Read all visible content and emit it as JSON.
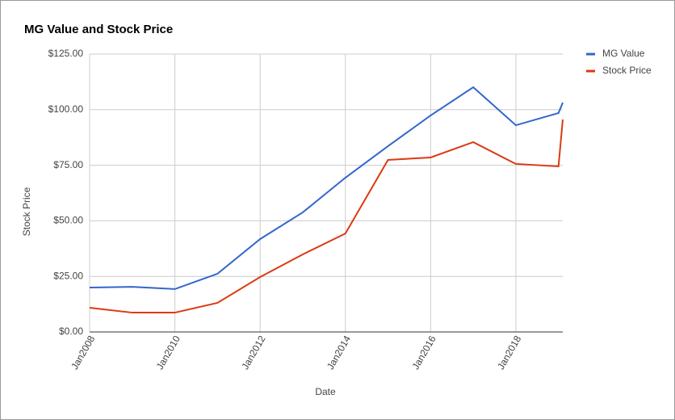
{
  "chart_data": {
    "type": "line",
    "title": "MG Value and Stock Price",
    "x_label": "Date",
    "y_label": "Stock Price",
    "x": [
      2008,
      2009,
      2010,
      2011,
      2012,
      2013,
      2014,
      2015,
      2016,
      2017,
      2018,
      2019,
      2019.1
    ],
    "series": [
      {
        "name": "MG Value",
        "color": "#3366cc",
        "values": [
          20.0,
          20.3,
          19.3,
          26.2,
          41.8,
          53.8,
          69.4,
          83.6,
          97.4,
          110.1,
          93.0,
          98.5,
          103.2
        ]
      },
      {
        "name": "Stock Price",
        "color": "#dc3912",
        "values": [
          10.9,
          8.7,
          8.7,
          13.1,
          24.7,
          34.9,
          44.3,
          77.4,
          78.5,
          85.4,
          75.6,
          74.5,
          95.6
        ]
      }
    ],
    "xlim": [
      2008,
      2019.1
    ],
    "xticks": [
      {
        "value": 2008,
        "label": "Jan2008"
      },
      {
        "value": 2010,
        "label": "Jan2010"
      },
      {
        "value": 2012,
        "label": "Jan2012"
      },
      {
        "value": 2014,
        "label": "Jan2014"
      },
      {
        "value": 2016,
        "label": "Jan2016"
      },
      {
        "value": 2018,
        "label": "Jan2018"
      }
    ],
    "ylim": [
      0,
      125
    ],
    "yticks": [
      {
        "value": 0,
        "label": "$0.00"
      },
      {
        "value": 25,
        "label": "$25.00"
      },
      {
        "value": 50,
        "label": "$50.00"
      },
      {
        "value": 75,
        "label": "$75.00"
      },
      {
        "value": 100,
        "label": "$100.00"
      },
      {
        "value": 125,
        "label": "$125.00"
      }
    ],
    "grid": true,
    "legend": "right"
  }
}
